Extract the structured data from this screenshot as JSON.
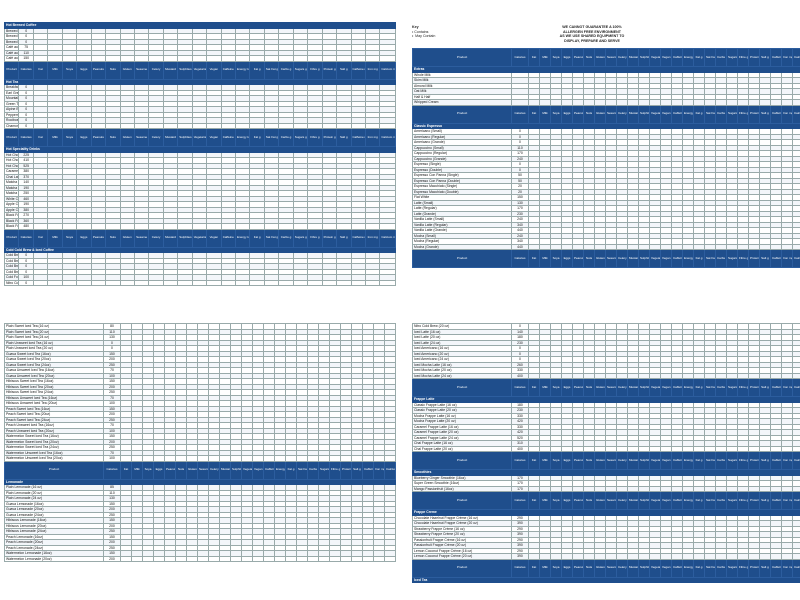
{
  "legend": {
    "key_title": "Key",
    "contains": "Contains",
    "may_contain": "May Contain",
    "notice_l1": "WE CANNOT GUARANTEE A 100%",
    "notice_l2": "ALLERGEN FREE ENVIRONMENT",
    "notice_l3": "AS WE USE SHARED EQUIPMENT TO",
    "notice_l4": "DISPLAY, PREPARE AND SERVE"
  },
  "header_labels": {
    "product": "Product",
    "calories": "Calories",
    "cols": [
      "Fat",
      "Milk",
      "Soya",
      "Eggs",
      "Peanuts",
      "Nuts",
      "Gluten",
      "Sesame",
      "Celery",
      "Mustard",
      "Sulphites",
      "Vegetarian",
      "Vegan",
      "Caffeine",
      "Energy kcal",
      "Fat g",
      "Sat Fat g",
      "Carbs g",
      "Sugars g",
      "Fibre g",
      "Protein g",
      "Salt g",
      "Caffeine mg",
      "Iron mg",
      "Calcium mg"
    ]
  },
  "panel_tl": [
    {
      "type": "sec",
      "name": "Hot Brewed Coffee"
    },
    {
      "type": "row",
      "name": "Brewed Coffee (Small)",
      "cal": "0"
    },
    {
      "type": "row",
      "name": "Brewed Coffee (Regular)",
      "cal": "0"
    },
    {
      "type": "row",
      "name": "Brewed Coffee (Grande)",
      "cal": "0"
    },
    {
      "type": "row",
      "name": "Café au Lait (Small)",
      "cal": "75"
    },
    {
      "type": "row",
      "name": "Café au Lait (Regular)",
      "cal": "110"
    },
    {
      "type": "row",
      "name": "Café au Lait (Grande)",
      "cal": "150"
    },
    {
      "type": "hdr"
    },
    {
      "type": "sec",
      "name": "Hot Tea"
    },
    {
      "type": "row",
      "name": "Breakfast Tea",
      "cal": "0"
    },
    {
      "type": "row",
      "name": "Earl Grey",
      "cal": "0"
    },
    {
      "type": "row",
      "name": "Mountain High Chai",
      "cal": "0"
    },
    {
      "type": "row",
      "name": "Green Tea",
      "cal": "0"
    },
    {
      "type": "row",
      "name": "Alpine Berry",
      "cal": "0"
    },
    {
      "type": "row",
      "name": "Peppermint",
      "cal": "0"
    },
    {
      "type": "row",
      "name": "Rooibos",
      "cal": "0"
    },
    {
      "type": "row",
      "name": "Chamomile",
      "cal": "0"
    },
    {
      "type": "hdr"
    },
    {
      "type": "sec",
      "name": "Hot Speciality Drinks"
    },
    {
      "type": "row",
      "name": "Hot Chocolate (Small)",
      "cal": "225"
    },
    {
      "type": "row",
      "name": "Hot Chocolate (Regular)",
      "cal": "410"
    },
    {
      "type": "row",
      "name": "Hot Chocolate (Grande)",
      "cal": "525"
    },
    {
      "type": "row",
      "name": "Caramel Latte (Grande)",
      "cal": "380"
    },
    {
      "type": "row",
      "name": "Chai Latte (Grande)",
      "cal": "370"
    },
    {
      "type": "row",
      "name": "Matcha Latte (Small)",
      "cal": "140"
    },
    {
      "type": "row",
      "name": "Matcha Latte (Regular)",
      "cal": "190"
    },
    {
      "type": "row",
      "name": "Matcha Latte (Grande)",
      "cal": "250"
    },
    {
      "type": "row",
      "name": "White Chocolate Mocha (Grande)",
      "cal": "460"
    },
    {
      "type": "row",
      "name": "Apple Cider (Regular)",
      "cal": "190"
    },
    {
      "type": "row",
      "name": "Apple Cider (Grande)",
      "cal": "380"
    },
    {
      "type": "row",
      "name": "Black Forest Latte (Small)",
      "cal": "270"
    },
    {
      "type": "row",
      "name": "Black Forest Latte (Regular)",
      "cal": "360"
    },
    {
      "type": "row",
      "name": "Black Forest Latte (Grande)",
      "cal": "480"
    },
    {
      "type": "hdr"
    },
    {
      "type": "sec",
      "name": "Cold Cold Brew & Iced Coffee"
    },
    {
      "type": "row",
      "name": "Cold Brew (16 oz)",
      "cal": "0"
    },
    {
      "type": "row",
      "name": "Cold Brew (20 oz)",
      "cal": "0"
    },
    {
      "type": "row",
      "name": "Cold Brew (24 oz)",
      "cal": "0"
    },
    {
      "type": "row",
      "name": "Cold Brew (32 oz)",
      "cal": "0"
    },
    {
      "type": "row",
      "name": "Cold Foam Cold Brew (16oz, 20oz, 24oz)",
      "cal": "100"
    },
    {
      "type": "row",
      "name": "Nitro Cold Brew (16 oz)",
      "cal": "0"
    }
  ],
  "panel_tr": [
    {
      "type": "hdr"
    },
    {
      "type": "sec",
      "name": "Extras"
    },
    {
      "type": "row",
      "name": "Whole Milk",
      "cal": ""
    },
    {
      "type": "row",
      "name": "Skim Milk",
      "cal": ""
    },
    {
      "type": "row",
      "name": "Almond Milk",
      "cal": ""
    },
    {
      "type": "row",
      "name": "Oat Milk",
      "cal": ""
    },
    {
      "type": "row",
      "name": "Half & Half",
      "cal": ""
    },
    {
      "type": "row",
      "name": "Whipped Cream",
      "cal": ""
    },
    {
      "type": "hdr"
    },
    {
      "type": "sec",
      "name": "Classic Espresso"
    },
    {
      "type": "row",
      "name": "Americano (Small)",
      "cal": "0"
    },
    {
      "type": "row",
      "name": "Americano (Regular)",
      "cal": "0"
    },
    {
      "type": "row",
      "name": "Americano (Grande)",
      "cal": "0"
    },
    {
      "type": "row",
      "name": "Cappuccino (Small)",
      "cal": "110"
    },
    {
      "type": "row",
      "name": "Cappuccino (Regular)",
      "cal": "170"
    },
    {
      "type": "row",
      "name": "Cappuccino (Grande)",
      "cal": "240"
    },
    {
      "type": "row",
      "name": "Espresso (Single)",
      "cal": "0"
    },
    {
      "type": "row",
      "name": "Espresso (Double)",
      "cal": "0"
    },
    {
      "type": "row",
      "name": "Espresso Con Panna (Single)",
      "cal": "50"
    },
    {
      "type": "row",
      "name": "Espresso Con Panna (Double)",
      "cal": "50"
    },
    {
      "type": "row",
      "name": "Espresso Macchiato (Single)",
      "cal": "20"
    },
    {
      "type": "row",
      "name": "Espresso Macchiato (Double)",
      "cal": "20"
    },
    {
      "type": "row",
      "name": "Flat White",
      "cal": "150"
    },
    {
      "type": "row",
      "name": "Latte (Small)",
      "cal": "130"
    },
    {
      "type": "row",
      "name": "Latte (Regular)",
      "cal": "170"
    },
    {
      "type": "row",
      "name": "Latte (Grande)",
      "cal": "230"
    },
    {
      "type": "row",
      "name": "Vanilla Latte (Small)",
      "cal": "240"
    },
    {
      "type": "row",
      "name": "Vanilla Latte (Regular)",
      "cal": "340"
    },
    {
      "type": "row",
      "name": "Vanilla Latte (Grande)",
      "cal": "440"
    },
    {
      "type": "row",
      "name": "Mocha (Small)",
      "cal": "240"
    },
    {
      "type": "row",
      "name": "Mocha (Regular)",
      "cal": "340"
    },
    {
      "type": "row",
      "name": "Mocha (Grande)",
      "cal": "440"
    },
    {
      "type": "hdr"
    }
  ],
  "panel_bl": [
    {
      "type": "row",
      "name": "Plain Sweet Iced Tea (16 oz)",
      "cal": "80"
    },
    {
      "type": "row",
      "name": "Plain Sweet Iced Tea (20 oz)",
      "cal": "110"
    },
    {
      "type": "row",
      "name": "Plain Sweet Iced Tea (24 oz)",
      "cal": "130"
    },
    {
      "type": "row",
      "name": "Plain Unsweet Iced Tea (16 oz)",
      "cal": "0"
    },
    {
      "type": "row",
      "name": "Plain Unsweet Iced Tea (20 oz)",
      "cal": "0"
    },
    {
      "type": "row",
      "name": "Guava Sweet Iced Tea (16oz)",
      "cal": "150"
    },
    {
      "type": "row",
      "name": "Guava Sweet Iced Tea (20oz)",
      "cal": "200"
    },
    {
      "type": "row",
      "name": "Guava Sweet Iced Tea (24oz)",
      "cal": "250"
    },
    {
      "type": "row",
      "name": "Guava Unsweet Iced Tea (16oz)",
      "cal": "70"
    },
    {
      "type": "row",
      "name": "Guava Unsweet Iced Tea (20oz)",
      "cal": "100"
    },
    {
      "type": "row",
      "name": "Hibiscus Sweet Iced Tea (16oz)",
      "cal": "150"
    },
    {
      "type": "row",
      "name": "Hibiscus Sweet Iced Tea (20oz)",
      "cal": "200"
    },
    {
      "type": "row",
      "name": "Hibiscus Sweet Iced Tea (24oz)",
      "cal": "250"
    },
    {
      "type": "row",
      "name": "Hibiscus Unsweet Iced Tea (16oz)",
      "cal": "70"
    },
    {
      "type": "row",
      "name": "Hibiscus Unsweet Iced Tea (20oz)",
      "cal": "100"
    },
    {
      "type": "row",
      "name": "Peach Sweet Iced Tea (16oz)",
      "cal": "150"
    },
    {
      "type": "row",
      "name": "Peach Sweet Iced Tea (20oz)",
      "cal": "200"
    },
    {
      "type": "row",
      "name": "Peach Sweet Iced Tea (24oz)",
      "cal": "250"
    },
    {
      "type": "row",
      "name": "Peach Unsweet Iced Tea (16oz)",
      "cal": "70"
    },
    {
      "type": "row",
      "name": "Peach Unsweet Iced Tea (20oz)",
      "cal": "100"
    },
    {
      "type": "row",
      "name": "Watermelon Sweet Iced Tea (16oz)",
      "cal": "150"
    },
    {
      "type": "row",
      "name": "Watermelon Sweet Iced Tea (20oz)",
      "cal": "200"
    },
    {
      "type": "row",
      "name": "Watermelon Sweet Iced Tea (24oz)",
      "cal": "250"
    },
    {
      "type": "row",
      "name": "Watermelon Unsweet Iced Tea (16oz)",
      "cal": "70"
    },
    {
      "type": "row",
      "name": "Watermelon Unsweet Iced Tea (20oz)",
      "cal": "100"
    },
    {
      "type": "hdr"
    },
    {
      "type": "sec",
      "name": "Lemonade"
    },
    {
      "type": "row",
      "name": "Plain Lemonade (16 oz)",
      "cal": "85"
    },
    {
      "type": "row",
      "name": "Plain Lemonade (20 oz)",
      "cal": "110"
    },
    {
      "type": "row",
      "name": "Plain Lemonade (24 oz)",
      "cal": "130"
    },
    {
      "type": "row",
      "name": "Guava Lemonade (16oz)",
      "cal": "150"
    },
    {
      "type": "row",
      "name": "Guava Lemonade (20oz)",
      "cal": "200"
    },
    {
      "type": "row",
      "name": "Guava Lemonade (24oz)",
      "cal": "250"
    },
    {
      "type": "row",
      "name": "Hibiscus Lemonade (16oz)",
      "cal": "150"
    },
    {
      "type": "row",
      "name": "Hibiscus Lemonade (20oz)",
      "cal": "200"
    },
    {
      "type": "row",
      "name": "Hibiscus Lemonade (24oz)",
      "cal": "250"
    },
    {
      "type": "row",
      "name": "Peach Lemonade (16oz)",
      "cal": "150"
    },
    {
      "type": "row",
      "name": "Peach Lemonade (20oz)",
      "cal": "200"
    },
    {
      "type": "row",
      "name": "Peach Lemonade (24oz)",
      "cal": "250"
    },
    {
      "type": "row",
      "name": "Watermelon Lemonade (16oz)",
      "cal": "150"
    },
    {
      "type": "row",
      "name": "Watermelon Lemonade (20oz)",
      "cal": "200"
    }
  ],
  "panel_br": [
    {
      "type": "row",
      "name": "Nitro Cold Brew (20 oz)",
      "cal": "0"
    },
    {
      "type": "row",
      "name": "Iced Latte (16 oz)",
      "cal": "140"
    },
    {
      "type": "row",
      "name": "Iced Latte (20 oz)",
      "cal": "180"
    },
    {
      "type": "row",
      "name": "Iced Latte (24 oz)",
      "cal": "230"
    },
    {
      "type": "row",
      "name": "Iced Americano (16 oz)",
      "cal": "0"
    },
    {
      "type": "row",
      "name": "Iced Americano (20 oz)",
      "cal": "0"
    },
    {
      "type": "row",
      "name": "Iced Americano (24 oz)",
      "cal": "0"
    },
    {
      "type": "row",
      "name": "Iced Mocha Latte (16 oz)",
      "cal": "260"
    },
    {
      "type": "row",
      "name": "Iced Mocha Latte (20 oz)",
      "cal": "330"
    },
    {
      "type": "row",
      "name": "Iced Mocha Latte (24 oz)",
      "cal": "400"
    },
    {
      "type": "hdr"
    },
    {
      "type": "sec",
      "name": "Frappe Latte"
    },
    {
      "type": "row",
      "name": "Classic Frappe Latte (16 oz)",
      "cal": "180"
    },
    {
      "type": "row",
      "name": "Classic Frappe Latte (20 oz)",
      "cal": "230"
    },
    {
      "type": "row",
      "name": "Mocha Frappe Latte (16 oz)",
      "cal": "330"
    },
    {
      "type": "row",
      "name": "Mocha Frappe Latte (20 oz)",
      "cal": "420"
    },
    {
      "type": "row",
      "name": "Caramel Frappe Latte (16 oz)",
      "cal": "330"
    },
    {
      "type": "row",
      "name": "Caramel Frappe Latte (20 oz)",
      "cal": "420"
    },
    {
      "type": "row",
      "name": "Caramel Frappe Latte (24 oz)",
      "cal": "520"
    },
    {
      "type": "row",
      "name": "Chai Frappe Latte (16 oz)",
      "cal": "310"
    },
    {
      "type": "row",
      "name": "Chai Frappe Latte (20 oz)",
      "cal": "400"
    },
    {
      "type": "hdr"
    },
    {
      "type": "sec",
      "name": "Smoothies"
    },
    {
      "type": "row",
      "name": "Blueberry Ginger Smoothie (16oz)",
      "cal": "170"
    },
    {
      "type": "row",
      "name": "Super Green Smoothie (16oz)",
      "cal": "170"
    },
    {
      "type": "row",
      "name": "Mango Passionfruit (16oz)",
      "cal": "170"
    },
    {
      "type": "hdr"
    },
    {
      "type": "sec",
      "name": "Frappe Creme"
    },
    {
      "type": "row",
      "name": "Chocolate Hazelnut Frappe Crème (16 oz)",
      "cal": "290"
    },
    {
      "type": "row",
      "name": "Chocolate Hazelnut Frappe Crème (20 oz)",
      "cal": "390"
    },
    {
      "type": "row",
      "name": "Strawberry Frappe Crème (16 oz)",
      "cal": "290"
    },
    {
      "type": "row",
      "name": "Strawberry Frappe Crème (20 oz)",
      "cal": "390"
    },
    {
      "type": "row",
      "name": "Passionfruit Frappe Crème (16 oz)",
      "cal": "290"
    },
    {
      "type": "row",
      "name": "Passionfruit Frappe Crème (20 oz)",
      "cal": "390"
    },
    {
      "type": "row",
      "name": "Lemon Coconut Frappe Crème (16 oz)",
      "cal": "290"
    },
    {
      "type": "row",
      "name": "Lemon Coconut Frappe Crème (20 oz)",
      "cal": "390"
    },
    {
      "type": "hdr"
    },
    {
      "type": "sec",
      "name": "Iced Tea"
    }
  ]
}
